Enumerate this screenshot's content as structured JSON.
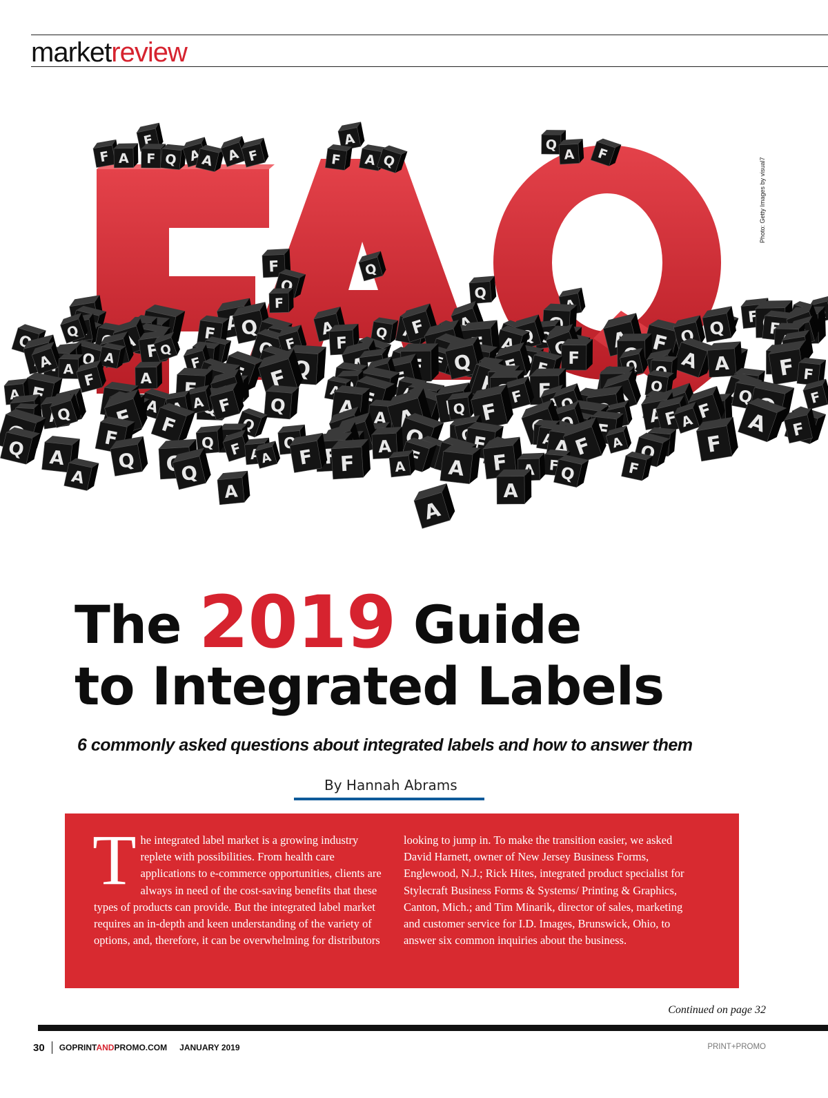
{
  "header": {
    "section_word1": "market",
    "section_word2": "review"
  },
  "photo_credit": "Photo: Getty Images by visual7",
  "hero_image": {
    "big_letters": [
      "F",
      "A",
      "Q"
    ],
    "cube_letters": [
      "F",
      "A",
      "Q"
    ],
    "colors": {
      "big_letters": "#d6232f",
      "cubes": "#141414",
      "cube_letter": "#e8e8e8"
    }
  },
  "article": {
    "headline_part1": "The ",
    "headline_year": "2019",
    "headline_part2": " Guide",
    "headline_line2": "to Integrated Labels",
    "subtitle": "6 commonly asked questions about integrated labels and how to answer them",
    "byline": "By Hannah Abrams",
    "intro_dropcap": "T",
    "intro_col1": "he integrated label market is a growing industry replete with possibilities. From health care applications to e-commerce opportunities, clients are always in need of the cost-saving benefits that these types of products can provide. But the integrated label market requires an in-depth and keen understanding of the variety of options, and, therefore, it can be overwhelming for distributors",
    "intro_col2": "looking to jump in. To make the transition easier, we asked David Harnett, owner of New Jersey Business Forms, Englewood, N.J.; Rick Hites, integrated product specialist for Stylecraft Business Forms & Systems/ Printing & Graphics, Canton, Mich.; and Tim Minarik, director of sales, marketing and customer service for I.D. Images, Brunswick, Ohio, to answer six common inquiries about the business.",
    "continued": "Continued on page 32"
  },
  "footer": {
    "page_number": "30",
    "site_part1": "GOPRINT",
    "site_part2": "AND",
    "site_part3": "PROMO.COM",
    "issue": "JANUARY 2019",
    "magazine": "PRINT+PROMO"
  },
  "colors": {
    "accent": "#d6232f",
    "box": "#d82a30",
    "byline_rule": "#0e5a9a"
  }
}
